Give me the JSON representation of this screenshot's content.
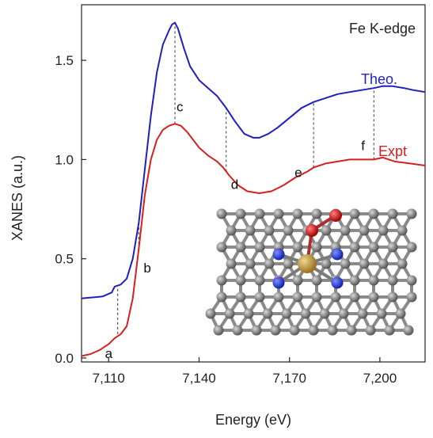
{
  "chart_data": {
    "type": "line",
    "title": "Fe K-edge",
    "xlabel": "Energy (eV)",
    "ylabel": "XANES (a.u.)",
    "xlim": [
      7101,
      7215
    ],
    "ylim": [
      -0.02,
      1.78
    ],
    "xticks": [
      {
        "value": 7110,
        "label": "7,110"
      },
      {
        "value": 7140,
        "label": "7,140"
      },
      {
        "value": 7170,
        "label": "7,170"
      },
      {
        "value": 7200,
        "label": "7,200"
      }
    ],
    "yticks": [
      {
        "value": 0.0,
        "label": "0.0"
      },
      {
        "value": 0.5,
        "label": "0.5"
      },
      {
        "value": 1.0,
        "label": "1.0"
      },
      {
        "value": 1.5,
        "label": "1.5"
      }
    ],
    "grid": false,
    "legend_position": "inline-right",
    "series": [
      {
        "name": "Theo.",
        "color": "#1f1fbf",
        "x": [
          7101,
          7108,
          7111,
          7112,
          7114,
          7116,
          7118,
          7120,
          7122,
          7124,
          7126,
          7128,
          7130,
          7131,
          7132,
          7133,
          7135,
          7137,
          7140,
          7143,
          7146,
          7149,
          7152,
          7155,
          7158,
          7160,
          7163,
          7166,
          7170,
          7174,
          7178,
          7182,
          7186,
          7190,
          7194,
          7198,
          7201,
          7204,
          7208,
          7211,
          7215
        ],
        "y": [
          0.3,
          0.31,
          0.33,
          0.36,
          0.37,
          0.4,
          0.5,
          0.68,
          0.95,
          1.22,
          1.44,
          1.58,
          1.65,
          1.68,
          1.69,
          1.66,
          1.56,
          1.47,
          1.4,
          1.36,
          1.32,
          1.26,
          1.19,
          1.13,
          1.11,
          1.11,
          1.13,
          1.16,
          1.21,
          1.26,
          1.29,
          1.31,
          1.33,
          1.34,
          1.35,
          1.36,
          1.37,
          1.37,
          1.36,
          1.35,
          1.34
        ]
      },
      {
        "name": "Expt",
        "color": "#d42020",
        "x": [
          7101,
          7104,
          7107,
          7110,
          7112,
          7114,
          7116,
          7118,
          7120,
          7122,
          7124,
          7126,
          7128,
          7130,
          7132,
          7134,
          7136,
          7138,
          7140,
          7143,
          7146,
          7148,
          7150,
          7153,
          7156,
          7160,
          7164,
          7168,
          7172,
          7176,
          7178,
          7182,
          7186,
          7190,
          7194,
          7198,
          7201,
          7205,
          7210,
          7215
        ],
        "y": [
          0.01,
          0.02,
          0.04,
          0.07,
          0.1,
          0.12,
          0.16,
          0.3,
          0.55,
          0.82,
          1.0,
          1.1,
          1.15,
          1.17,
          1.18,
          1.17,
          1.14,
          1.1,
          1.06,
          1.02,
          0.99,
          0.96,
          0.92,
          0.87,
          0.84,
          0.83,
          0.84,
          0.87,
          0.91,
          0.94,
          0.96,
          0.98,
          0.99,
          1.0,
          1.0,
          1.0,
          1.01,
          0.99,
          0.98,
          0.97
        ]
      }
    ],
    "markers": [
      {
        "label": "a",
        "x": 7113,
        "y_bottom": 0.12,
        "y_top": 0.36
      },
      {
        "label": "b",
        "x": 7120,
        "y_bottom": 0.55,
        "y_top": 0.68
      },
      {
        "label": "c",
        "x": 7132,
        "y_bottom": 1.18,
        "y_top": 1.69
      },
      {
        "label": "d",
        "x": 7149,
        "y_bottom": 0.94,
        "y_top": 1.26
      },
      {
        "label": "e",
        "x": 7178,
        "y_bottom": 0.96,
        "y_top": 1.29
      },
      {
        "label": "f",
        "x": 7198,
        "y_bottom": 1.0,
        "y_top": 1.36
      }
    ]
  },
  "inset": {
    "atoms": {
      "carbon": "#7a7a7a",
      "nitrogen": "#2030d0",
      "iron": "#c8a040",
      "oxygen": "#cc1818"
    }
  }
}
